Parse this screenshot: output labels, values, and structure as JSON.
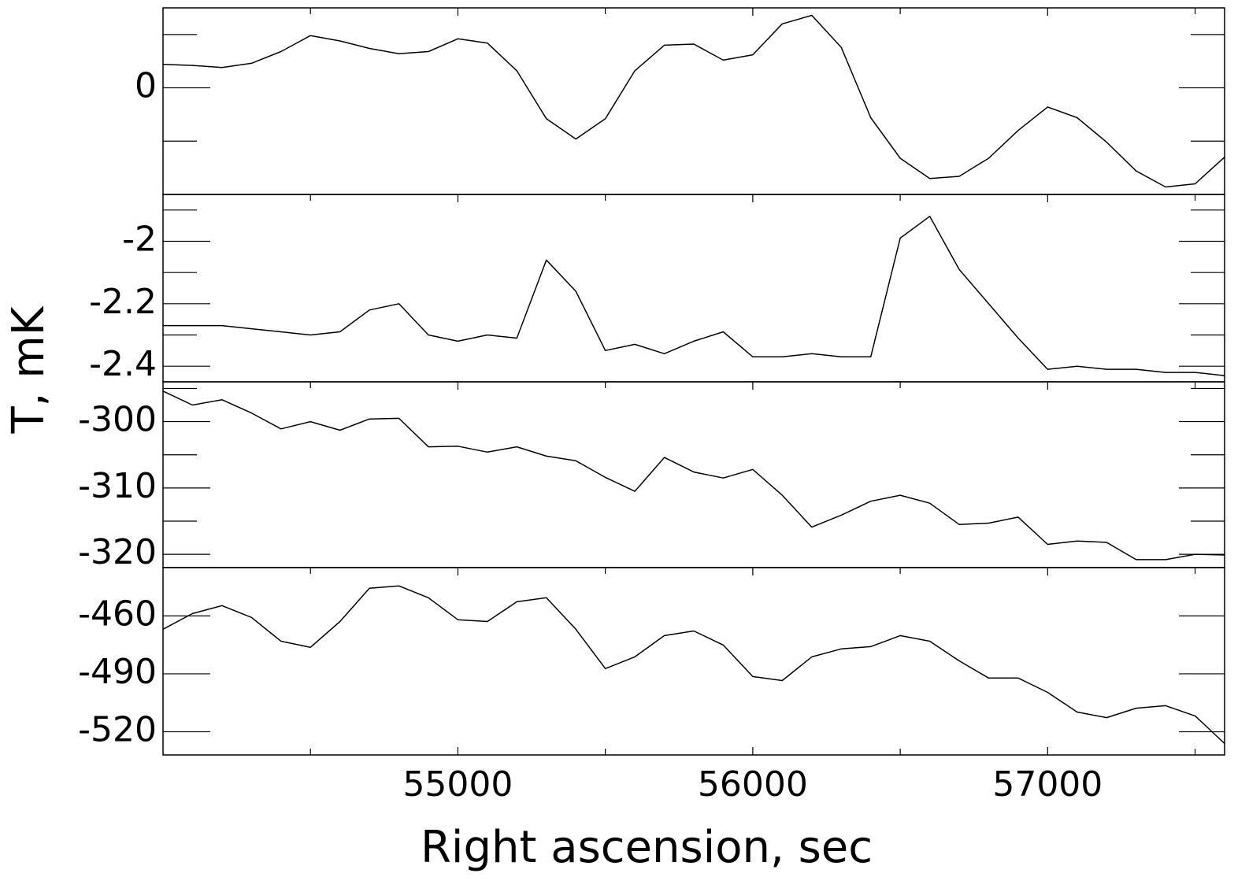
{
  "chart_data": [
    {
      "type": "line",
      "ylabel": "T, mK",
      "color": "#000000",
      "x": [
        54000,
        54100,
        54200,
        54300,
        54400,
        54500,
        54600,
        54700,
        54800,
        54900,
        55000,
        55100,
        55200,
        55300,
        55400,
        55500,
        55600,
        55700,
        55800,
        55900,
        56000,
        56100,
        56200,
        56300,
        56400,
        56500,
        56600,
        56700,
        56800,
        56900,
        57000,
        57100,
        57200,
        57300,
        57400,
        57500,
        57600
      ],
      "values": [
        0.22,
        0.21,
        0.19,
        0.23,
        0.34,
        0.49,
        0.44,
        0.37,
        0.32,
        0.34,
        0.46,
        0.42,
        0.16,
        -0.29,
        -0.48,
        -0.29,
        0.16,
        0.4,
        0.41,
        0.26,
        0.31,
        0.6,
        0.68,
        0.38,
        -0.28,
        -0.66,
        -0.85,
        -0.83,
        -0.66,
        -0.4,
        -0.18,
        -0.28,
        -0.51,
        -0.78,
        -0.93,
        -0.9,
        -0.65
      ],
      "xlim": [
        54000,
        57600
      ],
      "xticks": [
        55000,
        56000,
        57000
      ],
      "xminorticks": [
        54500,
        55500,
        56500,
        57500
      ],
      "ylim": [
        -1.0,
        0.75
      ],
      "yticks": [
        0
      ],
      "yminorticks": [
        -0.5,
        0.5
      ]
    },
    {
      "type": "line",
      "color": "#000000",
      "x": [
        54000,
        54100,
        54200,
        54300,
        54400,
        54500,
        54600,
        54700,
        54800,
        54900,
        55000,
        55100,
        55200,
        55300,
        55400,
        55500,
        55600,
        55700,
        55800,
        55900,
        56000,
        56100,
        56200,
        56300,
        56400,
        56500,
        56600,
        56700,
        56800,
        56900,
        57000,
        57100,
        57200,
        57300,
        57400,
        57500,
        57600
      ],
      "values": [
        -2.27,
        -2.27,
        -2.27,
        -2.28,
        -2.29,
        -2.3,
        -2.29,
        -2.22,
        -2.2,
        -2.3,
        -2.32,
        -2.3,
        -2.31,
        -2.06,
        -2.16,
        -2.35,
        -2.33,
        -2.36,
        -2.32,
        -2.29,
        -2.37,
        -2.37,
        -2.36,
        -2.37,
        -2.37,
        -1.99,
        -1.92,
        -2.09,
        -2.2,
        -2.31,
        -2.41,
        -2.4,
        -2.41,
        -2.41,
        -2.42,
        -2.42,
        -2.43
      ],
      "xlim": [
        54000,
        57600
      ],
      "xticks": [
        55000,
        56000,
        57000
      ],
      "xminorticks": [
        54500,
        55500,
        56500,
        57500
      ],
      "ylim": [
        -2.45,
        -1.85
      ],
      "yticks": [
        -2,
        -2.2,
        -2.4
      ],
      "yminorticks": [
        -1.9,
        -2.1,
        -2.3
      ]
    },
    {
      "type": "line",
      "color": "#000000",
      "x": [
        54000,
        54100,
        54200,
        54300,
        54400,
        54500,
        54600,
        54700,
        54800,
        54900,
        55000,
        55100,
        55200,
        55300,
        55400,
        55500,
        55600,
        55700,
        55800,
        55900,
        56000,
        56100,
        56200,
        56300,
        56400,
        56500,
        56600,
        56700,
        56800,
        56900,
        57000,
        57100,
        57200,
        57300,
        57400,
        57500,
        57600
      ],
      "values": [
        -295.4,
        -297.5,
        -296.7,
        -298.7,
        -301.1,
        -300.0,
        -301.3,
        -299.6,
        -299.5,
        -303.8,
        -303.7,
        -304.6,
        -303.8,
        -305.2,
        -305.9,
        -308.4,
        -310.5,
        -305.4,
        -307.6,
        -308.5,
        -307.2,
        -311.1,
        -315.9,
        -314.1,
        -312.0,
        -311.1,
        -312.3,
        -315.5,
        -315.3,
        -314.4,
        -318.5,
        -318.0,
        -318.2,
        -320.8,
        -320.8,
        -320.0,
        -320.1
      ],
      "xlim": [
        54000,
        57600
      ],
      "xticks": [
        55000,
        56000,
        57000
      ],
      "xminorticks": [
        54500,
        55500,
        56500,
        57500
      ],
      "ylim": [
        -322,
        -294
      ],
      "yticks": [
        -300,
        -310,
        -320
      ],
      "yminorticks": [
        -295,
        -305,
        -315
      ]
    },
    {
      "type": "line",
      "xlabel": "Right ascension, sec",
      "color": "#000000",
      "x": [
        54000,
        54100,
        54200,
        54300,
        54400,
        54500,
        54600,
        54700,
        54800,
        54900,
        55000,
        55100,
        55200,
        55300,
        55400,
        55500,
        55600,
        55700,
        55800,
        55900,
        56000,
        56100,
        56200,
        56300,
        56400,
        56500,
        56600,
        56700,
        56800,
        56900,
        57000,
        57100,
        57200,
        57300,
        57400,
        57500,
        57600
      ],
      "values": [
        -466.9,
        -458.8,
        -454.7,
        -460.8,
        -473.1,
        -476.3,
        -462.9,
        -445.7,
        -444.5,
        -450.6,
        -462.0,
        -462.9,
        -452.7,
        -450.6,
        -466.9,
        -487.3,
        -481.2,
        -470.2,
        -467.8,
        -475.1,
        -491.4,
        -493.5,
        -481.2,
        -477.1,
        -475.9,
        -470.2,
        -473.1,
        -483.3,
        -492.2,
        -492.2,
        -499.6,
        -509.8,
        -512.7,
        -507.8,
        -506.5,
        -511.8,
        -526.1
      ],
      "xlim": [
        54000,
        57600
      ],
      "xticks": [
        55000,
        56000,
        57000
      ],
      "xminorticks": [
        54500,
        55500,
        56500,
        57500
      ],
      "ylim": [
        -532,
        -435
      ],
      "yticks": [
        -460,
        -490,
        -520
      ],
      "yminorticks": []
    }
  ]
}
